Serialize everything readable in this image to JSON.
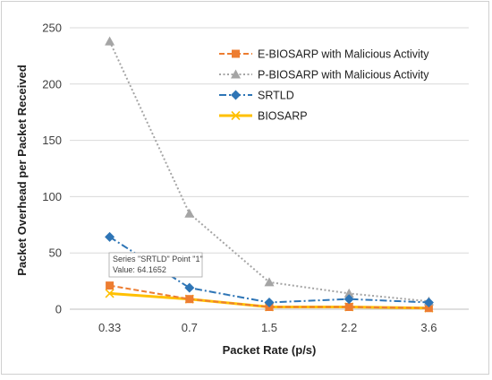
{
  "chart_data": {
    "type": "line",
    "xlabel": "Packet Rate (p/s)",
    "ylabel": "Packet Overhead per Packet Received",
    "categories": [
      "0.33",
      "0.7",
      "1.5",
      "2.2",
      "3.6"
    ],
    "ylim": [
      0,
      250
    ],
    "yticks": [
      0,
      50,
      100,
      150,
      200,
      250
    ],
    "grid": "horizontal",
    "legend_position": "top-right",
    "series": [
      {
        "name": "E-BIOSARP with Malicious Activity",
        "values": [
          21,
          9,
          2,
          2,
          1
        ],
        "color": "#ED7D31",
        "marker": "square",
        "dash": "dashed"
      },
      {
        "name": "P-BIOSARP with Malicious Activity",
        "values": [
          238,
          85,
          24,
          14,
          7
        ],
        "color": "#A5A5A5",
        "marker": "triangle",
        "dash": "dotted"
      },
      {
        "name": "SRTLD",
        "values": [
          64.1652,
          19,
          6,
          9,
          6
        ],
        "color": "#2E75B6",
        "marker": "diamond",
        "dash": "dashdot"
      },
      {
        "name": "BIOSARP",
        "values": [
          14,
          9,
          2,
          2,
          1
        ],
        "color": "#FFC000",
        "marker": "x",
        "dash": "solid"
      }
    ],
    "tooltip": {
      "line1": "Series \"SRTLD\" Point \"1\"",
      "line2": "Value: 64.1652"
    }
  }
}
